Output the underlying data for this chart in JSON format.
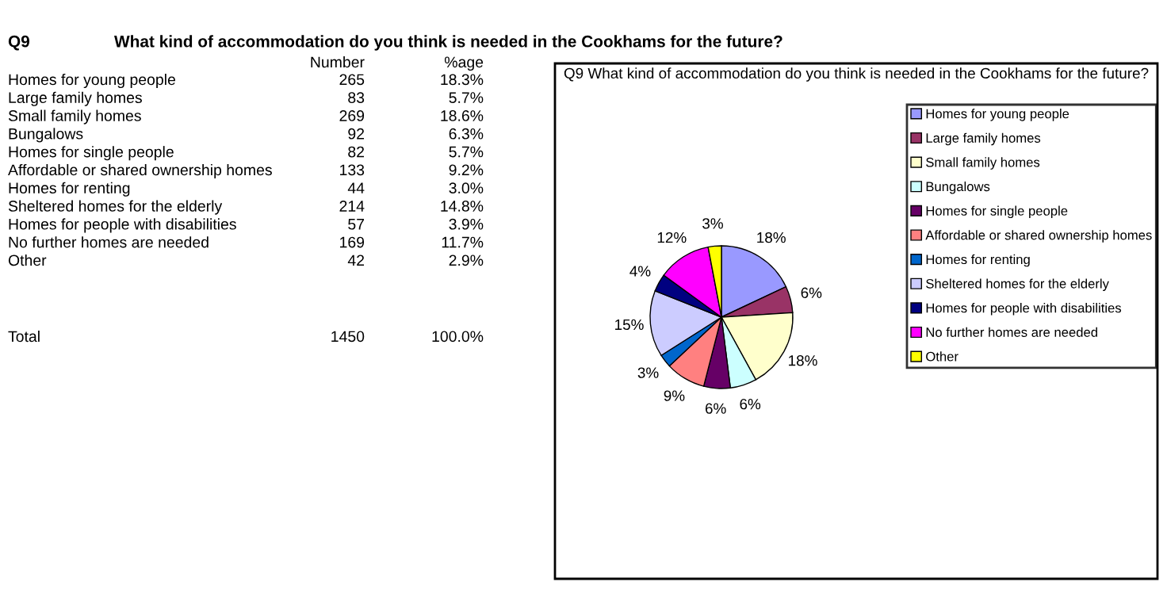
{
  "chart_data": [
    {
      "type": "other",
      "title": "Q9",
      "subtitle": "What kind of accommodation do you think is needed in the Cookhams for the future?",
      "categories": [
        "Homes for young people",
        "Large family homes",
        "Small family homes",
        "Bungalows",
        "Homes for single people",
        "Affordable or shared ownership homes",
        "Homes for renting",
        "Sheltered homes for the elderly",
        "Homes for people with disabilities",
        "No further homes are needed",
        "Other",
        "Total"
      ],
      "data_labels": true,
      "series": [
        {
          "name": "Number",
          "values": [
            265,
            83,
            269,
            92,
            82,
            133,
            44,
            214,
            57,
            169,
            42,
            1450
          ]
        },
        {
          "name": "%age",
          "values": [
            18.3,
            5.7,
            18.6,
            6.3,
            5.7,
            9.2,
            3.0,
            14.8,
            3.9,
            11.7,
            2.9,
            100.0
          ],
          "value_labels": [
            "18.3%",
            "5.7%",
            "18.6%",
            "6.3%",
            "5.7%",
            "9.2%",
            "3.0%",
            "14.8%",
            "3.9%",
            "11.7%",
            "2.9%",
            "100.0%"
          ]
        }
      ]
    },
    {
      "type": "pie",
      "title": "Q9 What kind of accommodation do you think is needed in the Cookhams for the future?",
      "categories": [
        "Homes for young people",
        "Large family homes",
        "Small family homes",
        "Bungalows",
        "Homes for single people",
        "Affordable or shared ownership homes",
        "Homes for renting",
        "Sheltered homes for the elderly",
        "Homes for people with disabilities",
        "No further homes are needed",
        "Other"
      ],
      "values": [
        18,
        6,
        18,
        6,
        6,
        9,
        3,
        15,
        4,
        12,
        3
      ],
      "colors": [
        "#9999ff",
        "#993366",
        "#ffffcc",
        "#ccffff",
        "#660066",
        "#ff8080",
        "#0066cc",
        "#ccccff",
        "#000080",
        "#ff00ff",
        "#ffff00"
      ],
      "value_labels": [
        "18%",
        "6%",
        "18%",
        "6%",
        "6%",
        "9%",
        "3%",
        "15%",
        "4%",
        "12%",
        "3%"
      ],
      "legend": "right"
    }
  ]
}
